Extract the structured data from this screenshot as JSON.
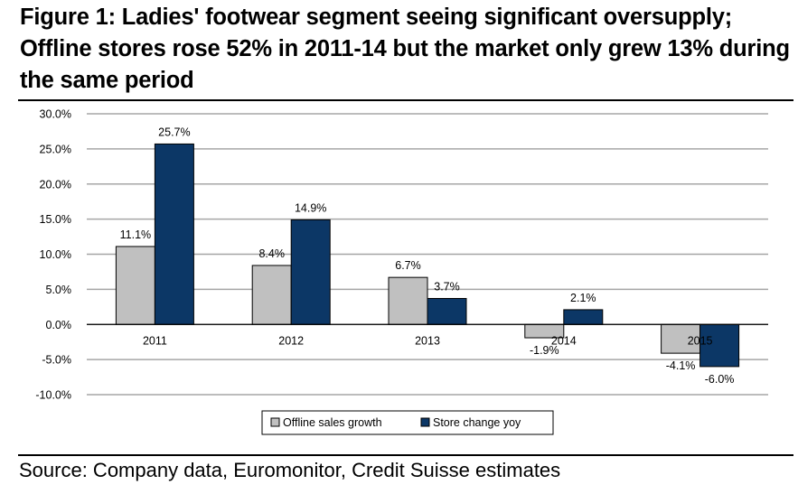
{
  "title_lines": [
    "Figure 1: Ladies' footwear segment seeing significant oversupply;",
    "Offline stores rose 52% in 2011-14 but the market only grew 13% during",
    "the same period"
  ],
  "source": "Source: Company data, Euromonitor, Credit Suisse estimates",
  "colors": {
    "offline": "#c0c0c0",
    "store": "#0c3766",
    "grid": "#a6a6a6"
  },
  "chart_data": {
    "type": "bar",
    "title": "",
    "xlabel": "",
    "ylabel": "",
    "categories": [
      "2011",
      "2012",
      "2013",
      "2014",
      "2015"
    ],
    "series": [
      {
        "name": "Offline sales growth",
        "values": [
          11.1,
          8.4,
          6.7,
          -1.9,
          -4.1
        ],
        "labels": [
          "11.1%",
          "8.4%",
          "6.7%",
          "-1.9%",
          "-4.1%"
        ]
      },
      {
        "name": "Store change yoy",
        "values": [
          25.7,
          14.9,
          3.7,
          2.1,
          -6.0
        ],
        "labels": [
          "25.7%",
          "14.9%",
          "3.7%",
          "2.1%",
          "-6.0%"
        ]
      }
    ],
    "ylim": [
      -10,
      30
    ],
    "yticks": [
      30,
      25,
      20,
      15,
      10,
      5,
      0,
      -5,
      -10
    ],
    "ytick_labels": [
      "30.0%",
      "25.0%",
      "20.0%",
      "15.0%",
      "10.0%",
      "5.0%",
      "0.0%",
      "-5.0%",
      "-10.0%"
    ],
    "grid": true,
    "legend": "bottom-center"
  }
}
